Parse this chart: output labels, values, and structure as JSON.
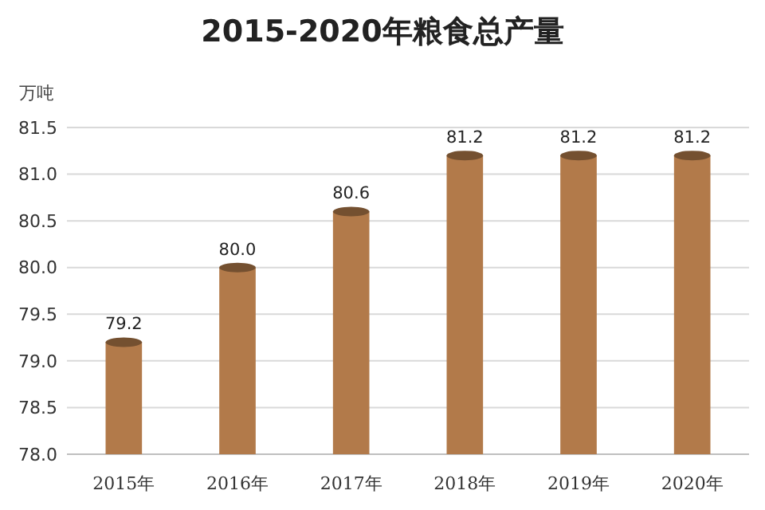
{
  "chart_data": {
    "type": "bar",
    "title": "2015-2020年粮食总产量",
    "ylabel": "万吨",
    "categories": [
      "2015年",
      "2016年",
      "2017年",
      "2018年",
      "2019年",
      "2020年"
    ],
    "values": [
      79.2,
      80.0,
      80.6,
      81.2,
      81.2,
      81.2
    ],
    "color": "#b27a4a",
    "value_labels": [
      "79.2",
      "80.0",
      "80.6",
      "81.2",
      "81.2",
      "81.2"
    ],
    "ylim": [
      78,
      81.5
    ],
    "yticks": [
      {
        "value": 78,
        "label": "78.0"
      },
      {
        "value": 78.5,
        "label": "78.5"
      },
      {
        "value": 79,
        "label": "79.0"
      },
      {
        "value": 79.5,
        "label": "79.5"
      },
      {
        "value": 80,
        "label": "80.0"
      },
      {
        "value": 80.5,
        "label": "80.5"
      },
      {
        "value": 81,
        "label": "81.0"
      },
      {
        "value": 81.5,
        "label": "81.5"
      }
    ],
    "grid": "y"
  }
}
